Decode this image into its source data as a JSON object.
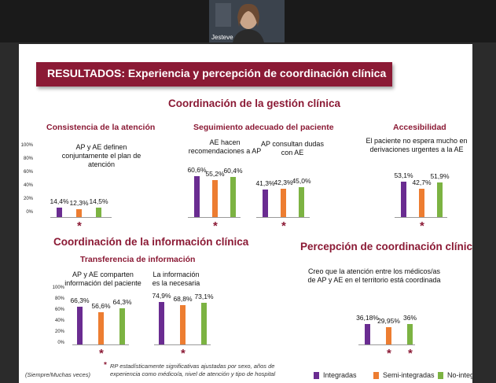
{
  "webcam": {
    "name": "Jesteve"
  },
  "slide": {
    "banner_title": "RESULTADOS: Experiencia y percepción de coordinación clínica",
    "section1_title": "Coordinación de la gestión clínica",
    "section2_title": "Coordinación de la información clínica",
    "section3_title": "Percepción de coordinación clínica",
    "subsections": {
      "consistencia": "Consistencia de la atención",
      "seguimiento": "Seguimiento adecuado del paciente",
      "accesibilidad": "Accesibilidad",
      "transferencia": "Transferencia de información"
    },
    "questions": {
      "q1": "AP y AE definen conjuntamente el plan de atención",
      "q2": "AE hacen recomendaciones a AP",
      "q3": "AP consultan dudas con AE",
      "q4": "El paciente no espera mucho en derivaciones urgentes a la AE",
      "q5": "AP y AE comparten información del paciente",
      "q6": "La información es la necesaria",
      "q7": "Creo que la atención entre los médicos/as de AP y AE en el territorio está coordinada"
    },
    "y_ticks_a": [
      "100%",
      "80%",
      "60%",
      "40%",
      "20%",
      "0%"
    ],
    "y_ticks_b": [
      "100%",
      "80%",
      "60%",
      "40%",
      "20%",
      "0%"
    ],
    "footnote_left": "(Siempre/Muchas veces)",
    "footnote_star": "*",
    "footnote_right": "RP estadísticamente significativas ajustadas por sexo, años de experiencia como médico/a, nivel de atención y tipo de hospital",
    "legend": [
      {
        "label": "Integradas",
        "color": "#6a2c91"
      },
      {
        "label": "Semi-integradas",
        "color": "#ed7d31"
      },
      {
        "label": "No-integradas",
        "color": "#7cb342"
      }
    ]
  },
  "chart_data": [
    {
      "type": "bar",
      "title": "AP y AE definen conjuntamente el plan de atención",
      "series_values": [
        14.4,
        12.3,
        14.5
      ],
      "labels": [
        "14,4%",
        "12,3%",
        "14,5%"
      ],
      "significant": true,
      "ylim": [
        0,
        100
      ]
    },
    {
      "type": "bar",
      "title": "AE hacen recomendaciones a AP",
      "series_values": [
        60.6,
        55.2,
        60.4
      ],
      "labels": [
        "60,6%",
        "55,2%",
        "60,4%"
      ],
      "significant": true,
      "ylim": [
        0,
        100
      ]
    },
    {
      "type": "bar",
      "title": "AP consultan dudas con AE",
      "series_values": [
        41.3,
        42.3,
        45.0
      ],
      "labels": [
        "41,3%",
        "42,3%",
        "45,0%"
      ],
      "significant": true,
      "ylim": [
        0,
        100
      ]
    },
    {
      "type": "bar",
      "title": "El paciente no espera mucho en derivaciones urgentes a la AE",
      "series_values": [
        53.1,
        42.7,
        51.9
      ],
      "labels": [
        "53,1%",
        "42,7%",
        "51,9%"
      ],
      "significant": true,
      "ylim": [
        0,
        100
      ]
    },
    {
      "type": "bar",
      "title": "AP y AE comparten información del paciente",
      "series_values": [
        66.3,
        56.6,
        64.3
      ],
      "labels": [
        "66,3%",
        "56,6%",
        "64,3%"
      ],
      "significant": true,
      "ylim": [
        0,
        100
      ]
    },
    {
      "type": "bar",
      "title": "La información es la necesaria",
      "series_values": [
        74.9,
        68.8,
        73.1
      ],
      "labels": [
        "74,9%",
        "68,8%",
        "73,1%"
      ],
      "significant": true,
      "ylim": [
        0,
        100
      ]
    },
    {
      "type": "bar",
      "title": "Creo que la atención entre los médicos/as de AP y AE en el territorio está coordinada",
      "series_values": [
        36.18,
        29.95,
        36.0
      ],
      "labels": [
        "36,18%",
        "29,95%",
        "36%"
      ],
      "significant": true,
      "ylim": [
        0,
        100
      ]
    }
  ]
}
